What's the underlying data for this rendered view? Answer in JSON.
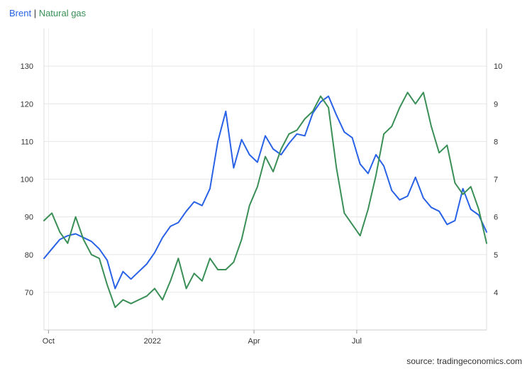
{
  "legend": {
    "brent_label": "Brent",
    "separator": " | ",
    "gas_label": "Natural gas",
    "brent_color": "#2962e6",
    "gas_color": "#3a8f57"
  },
  "source_text": "source: tradingeconomics.com",
  "chart_data": {
    "type": "line",
    "title": "",
    "x_ticks": [
      "Oct",
      "2022",
      "Apr",
      "Jul"
    ],
    "y_left": {
      "ticks": [
        "70",
        "80",
        "90",
        "100",
        "110",
        "120",
        "130"
      ],
      "range": [
        60,
        140
      ]
    },
    "y_right": {
      "ticks": [
        "4",
        "5",
        "6",
        "7",
        "8",
        "9",
        "10"
      ],
      "range": [
        3,
        11
      ]
    },
    "grid": true,
    "x": [
      "2021-09-27",
      "2021-10-04",
      "2021-10-11",
      "2021-10-18",
      "2021-10-25",
      "2021-11-01",
      "2021-11-08",
      "2021-11-15",
      "2021-11-22",
      "2021-11-29",
      "2021-12-06",
      "2021-12-13",
      "2021-12-20",
      "2021-12-27",
      "2022-01-03",
      "2022-01-10",
      "2022-01-17",
      "2022-01-24",
      "2022-01-31",
      "2022-02-07",
      "2022-02-14",
      "2022-02-21",
      "2022-02-28",
      "2022-03-07",
      "2022-03-14",
      "2022-03-21",
      "2022-03-28",
      "2022-04-04",
      "2022-04-11",
      "2022-04-18",
      "2022-04-25",
      "2022-05-02",
      "2022-05-09",
      "2022-05-16",
      "2022-05-23",
      "2022-05-30",
      "2022-06-06",
      "2022-06-13",
      "2022-06-20",
      "2022-06-27",
      "2022-07-04",
      "2022-07-11",
      "2022-07-18",
      "2022-07-25",
      "2022-08-01",
      "2022-08-08",
      "2022-08-15",
      "2022-08-22",
      "2022-08-29",
      "2022-09-05",
      "2022-09-12",
      "2022-09-19",
      "2022-09-26",
      "2022-10-03",
      "2022-10-10",
      "2022-10-17",
      "2022-10-24"
    ],
    "series": [
      {
        "name": "Brent",
        "axis": "left",
        "color": "#2962e6",
        "values": [
          79.0,
          81.5,
          84.0,
          85.0,
          85.5,
          84.5,
          83.5,
          81.5,
          78.5,
          71.0,
          75.5,
          73.5,
          75.5,
          77.5,
          80.5,
          84.5,
          87.5,
          88.5,
          91.5,
          94.0,
          93.0,
          97.5,
          110.0,
          118.0,
          103.0,
          110.5,
          106.5,
          104.5,
          111.5,
          108.0,
          106.5,
          109.5,
          112.0,
          111.5,
          117.5,
          120.5,
          122.0,
          117.0,
          112.5,
          111.0,
          104.0,
          101.5,
          106.5,
          103.5,
          97.0,
          94.5,
          95.5,
          100.5,
          95.0,
          92.5,
          91.5,
          88.0,
          89.0,
          97.5,
          92.0,
          90.5,
          86.0
        ]
      },
      {
        "name": "Natural gas",
        "axis": "right",
        "color": "#3a8f57",
        "values": [
          5.9,
          6.1,
          5.6,
          5.3,
          6.0,
          5.4,
          5.0,
          4.9,
          4.2,
          3.6,
          3.8,
          3.7,
          3.8,
          3.9,
          4.1,
          3.8,
          4.3,
          4.9,
          4.1,
          4.5,
          4.3,
          4.9,
          4.6,
          4.6,
          4.8,
          5.4,
          6.3,
          6.8,
          7.6,
          7.2,
          7.8,
          8.2,
          8.3,
          8.6,
          8.8,
          9.2,
          8.9,
          7.3,
          6.1,
          5.8,
          5.5,
          6.2,
          7.1,
          8.2,
          8.4,
          8.9,
          9.3,
          9.0,
          9.3,
          8.4,
          7.7,
          7.9,
          6.9,
          6.6,
          6.8,
          6.2,
          5.3
        ]
      }
    ]
  }
}
